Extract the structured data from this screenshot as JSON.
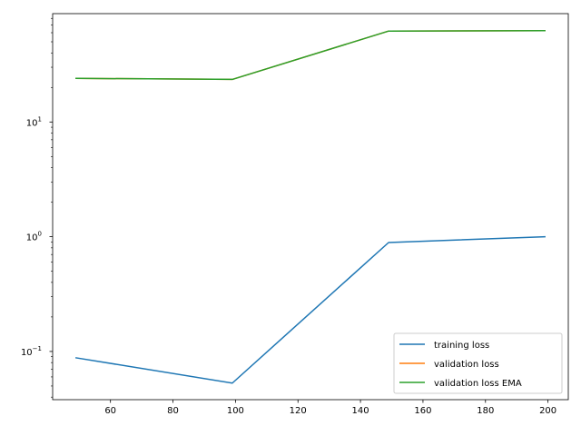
{
  "chart_data": {
    "type": "line",
    "title": "",
    "xlabel": "",
    "ylabel": "",
    "xscale": "linear",
    "yscale": "log",
    "xlim": [
      41.5,
      206.5
    ],
    "ylim": [
      0.038,
      88
    ],
    "x_ticks": [
      60,
      80,
      100,
      120,
      140,
      160,
      180,
      200
    ],
    "y_ticks": [
      {
        "value": 0.1,
        "base": "10",
        "exp": "−1"
      },
      {
        "value": 1,
        "base": "10",
        "exp": "0"
      },
      {
        "value": 10,
        "base": "10",
        "exp": "1"
      }
    ],
    "grid": false,
    "legend_position": "lower right",
    "series": [
      {
        "name": "training loss",
        "color": "#1f77b4",
        "x": [
          49,
          99,
          149,
          199
        ],
        "y": [
          0.088,
          0.053,
          0.89,
          1.0
        ]
      },
      {
        "name": "validation loss",
        "color": "#ff7f0e",
        "x": [
          49,
          99,
          149,
          199
        ],
        "y": [
          24.0,
          23.5,
          62.0,
          62.5
        ]
      },
      {
        "name": "validation loss EMA",
        "color": "#2ca02c",
        "x": [
          49,
          99,
          149,
          199
        ],
        "y": [
          24.0,
          23.5,
          62.0,
          62.5
        ]
      }
    ]
  }
}
